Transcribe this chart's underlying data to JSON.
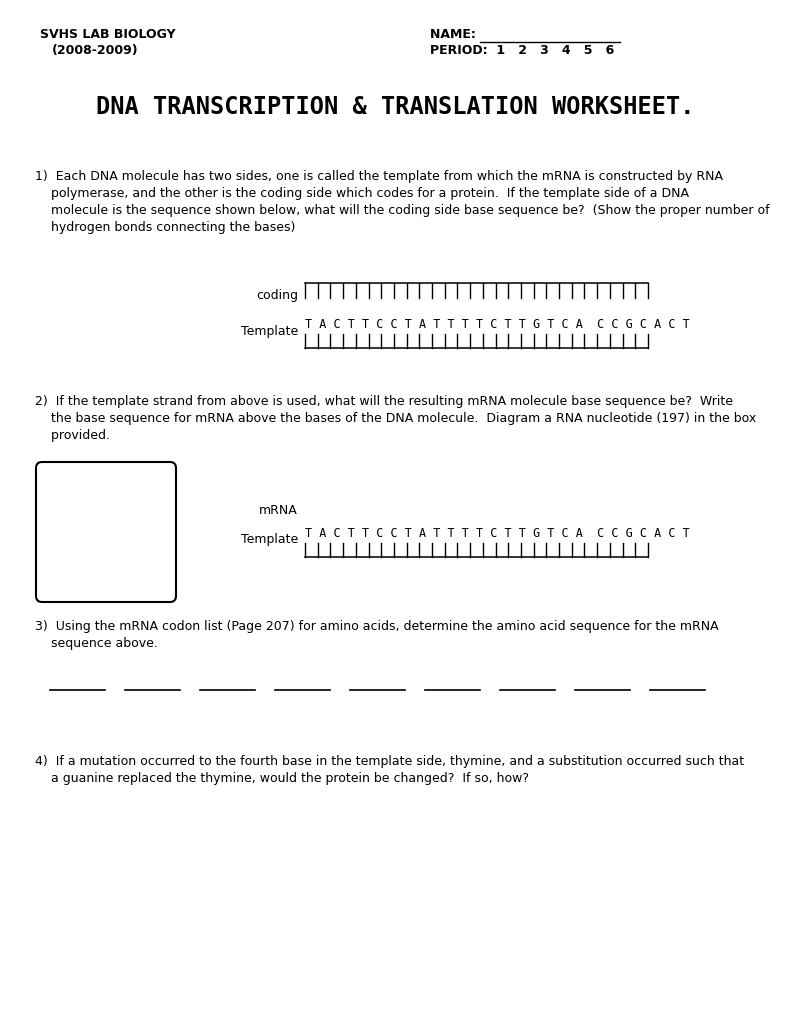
{
  "title": "DNA TRANSCRIPTION & TRANSLATION WORKSHEET.",
  "header_left_line1": "SVHS LAB BIOLOGY",
  "header_left_line2": "(2008-2009)",
  "header_right_line1": "NAME:  ________________",
  "header_right_line2": "PERIOD:  1   2   3   4   5   6",
  "q1_line1": "1)  Each DNA molecule has two sides, one is called the template from which the mRNA is constructed by RNA",
  "q1_line2": "    polymerase, and the other is the coding side which codes for a protein.  If the template side of a DNA",
  "q1_line3": "    molecule is the sequence shown below, what will the coding side base sequence be?  (Show the proper number of",
  "q1_line4": "    hydrogen bonds connecting the bases)",
  "q1_coding_label": "coding",
  "q1_template_label": "Template",
  "q1_template_seq": "T A C T T C C T A T T T T C T T G T C A  C C G C A C T",
  "q2_line1": "2)  If the template strand from above is used, what will the resulting mRNA molecule base sequence be?  Write",
  "q2_line2": "    the base sequence for mRNA above the bases of the DNA molecule.  Diagram a RNA nucleotide (197) in the box",
  "q2_line3": "    provided.",
  "q2_mrna_label": "mRNA",
  "q2_template_label": "Template",
  "q2_template_seq": "T A C T T C C T A T T T T C T T G T C A  C C G C A C T",
  "q3_line1": "3)  Using the mRNA codon list (Page 207) for amino acids, determine the amino acid sequence for the mRNA",
  "q3_line2": "    sequence above.",
  "q4_line1": "4)  If a mutation occurred to the fourth base in the template side, thymine, and a substitution occurred such that",
  "q4_line2": "    a guanine replaced the thymine, would the protein be changed?  If so, how?",
  "background_color": "#ffffff",
  "text_color": "#000000"
}
